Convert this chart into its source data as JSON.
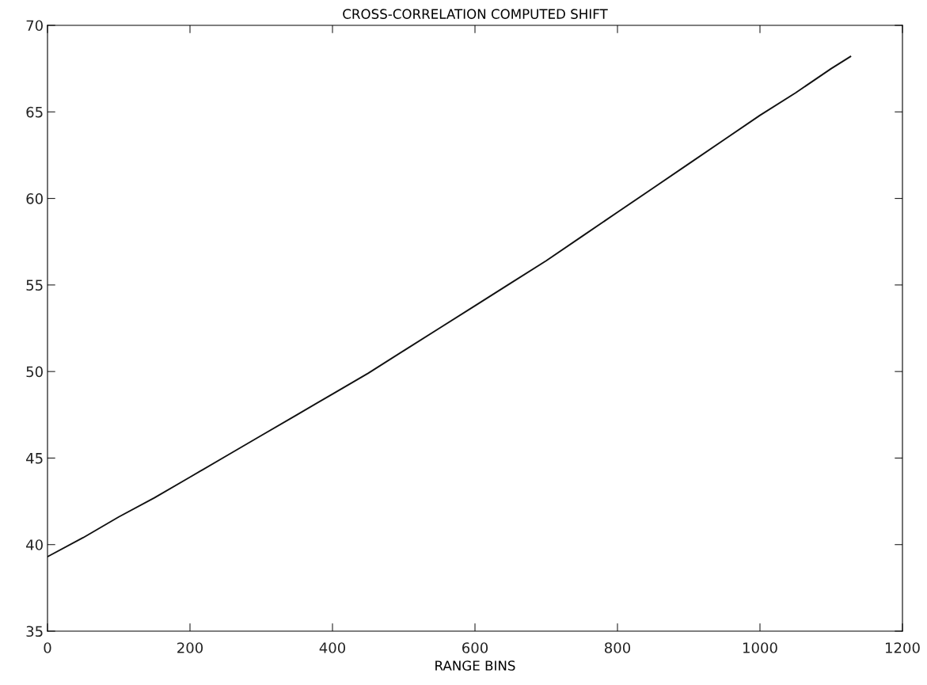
{
  "chart_data": {
    "type": "line",
    "title": "CROSS-CORRELATION COMPUTED SHIFT",
    "xlabel": "RANGE BINS",
    "x": [
      0,
      50,
      100,
      150,
      200,
      250,
      300,
      350,
      400,
      450,
      500,
      550,
      600,
      650,
      700,
      750,
      800,
      850,
      900,
      950,
      1000,
      1050,
      1100,
      1127
    ],
    "series": [
      {
        "color": "#111111",
        "values": [
          39.3,
          40.4,
          41.6,
          42.7,
          43.9,
          45.1,
          46.3,
          47.5,
          48.7,
          49.9,
          51.2,
          52.5,
          53.8,
          55.1,
          56.4,
          57.8,
          59.2,
          60.6,
          62.0,
          63.4,
          64.8,
          66.1,
          67.5,
          68.2
        ]
      }
    ],
    "xlim": [
      0,
      1200
    ],
    "xticks": [
      0,
      200,
      400,
      600,
      800,
      1000,
      1200
    ],
    "ylim": [
      35,
      70
    ],
    "yticks": [
      35,
      40,
      45,
      50,
      55,
      60,
      65,
      70
    ],
    "grid": false,
    "marker": "none",
    "line_style": "solid"
  }
}
